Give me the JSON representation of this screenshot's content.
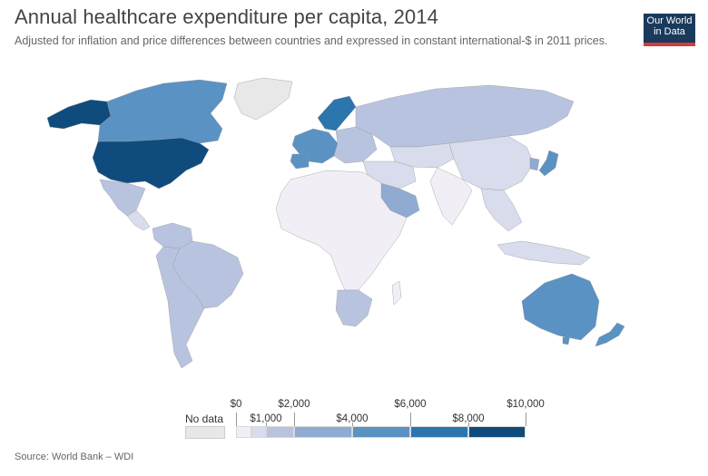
{
  "header": {
    "title": "Annual healthcare expenditure per capita, 2014",
    "subtitle": "Adjusted for inflation and price differences between countries and expressed in constant international-$ in 2011 prices."
  },
  "logo": {
    "line1": "Our World",
    "line2": "in Data"
  },
  "colors": {
    "no_data": "#e8e8e8",
    "bin1": "#f1eef6",
    "bin2": "#d9dcec",
    "bin3": "#b8c4df",
    "bin4": "#90abd2",
    "bin5": "#5a92c4",
    "bin6": "#2c75ad",
    "bin7": "#0f4c7d",
    "accent": "#d43b3b"
  },
  "legend": {
    "no_data_label": "No data",
    "upper_ticks": [
      {
        "value": 0,
        "label": "$0"
      },
      {
        "value": 2000,
        "label": "$2,000"
      },
      {
        "value": 6000,
        "label": "$6,000"
      },
      {
        "value": 10000,
        "label": "$10,000"
      }
    ],
    "lower_ticks": [
      {
        "value": 1000,
        "label": "$1,000"
      },
      {
        "value": 4000,
        "label": "$4,000"
      },
      {
        "value": 8000,
        "label": "$8,000"
      }
    ],
    "bins": [
      {
        "from": 0,
        "to": 500,
        "color_key": "bin1"
      },
      {
        "from": 500,
        "to": 1000,
        "color_key": "bin2"
      },
      {
        "from": 1000,
        "to": 2000,
        "color_key": "bin3"
      },
      {
        "from": 2000,
        "to": 4000,
        "color_key": "bin4"
      },
      {
        "from": 4000,
        "to": 6000,
        "color_key": "bin5"
      },
      {
        "from": 6000,
        "to": 8000,
        "color_key": "bin6"
      },
      {
        "from": 8000,
        "to": 10000,
        "color_key": "bin7"
      }
    ]
  },
  "map_data": {
    "year": 2014,
    "regions": [
      {
        "name": "United States",
        "bin": "bin7"
      },
      {
        "name": "Alaska",
        "bin": "bin7"
      },
      {
        "name": "Canada",
        "bin": "bin5"
      },
      {
        "name": "Greenland",
        "bin": "no_data"
      },
      {
        "name": "Mexico",
        "bin": "bin3"
      },
      {
        "name": "Central America",
        "bin": "bin2"
      },
      {
        "name": "Colombia & Venezuela",
        "bin": "bin3"
      },
      {
        "name": "Brazil",
        "bin": "bin3"
      },
      {
        "name": "Southern South America",
        "bin": "bin3"
      },
      {
        "name": "Western Europe",
        "bin": "bin5"
      },
      {
        "name": "Scandinavia",
        "bin": "bin6"
      },
      {
        "name": "Eastern Europe",
        "bin": "bin3"
      },
      {
        "name": "Russia",
        "bin": "bin3"
      },
      {
        "name": "Central Asia",
        "bin": "bin2"
      },
      {
        "name": "China",
        "bin": "bin2"
      },
      {
        "name": "Middle East",
        "bin": "bin2"
      },
      {
        "name": "Saudi Arabia",
        "bin": "bin4"
      },
      {
        "name": "India",
        "bin": "bin1"
      },
      {
        "name": "Southeast Asia",
        "bin": "bin2"
      },
      {
        "name": "Japan",
        "bin": "bin5"
      },
      {
        "name": "Korea",
        "bin": "bin4"
      },
      {
        "name": "Africa",
        "bin": "bin1"
      },
      {
        "name": "Southern Africa",
        "bin": "bin3"
      },
      {
        "name": "Australia",
        "bin": "bin5"
      },
      {
        "name": "New Zealand",
        "bin": "bin5"
      }
    ]
  },
  "source": "Source: World Bank – WDI"
}
